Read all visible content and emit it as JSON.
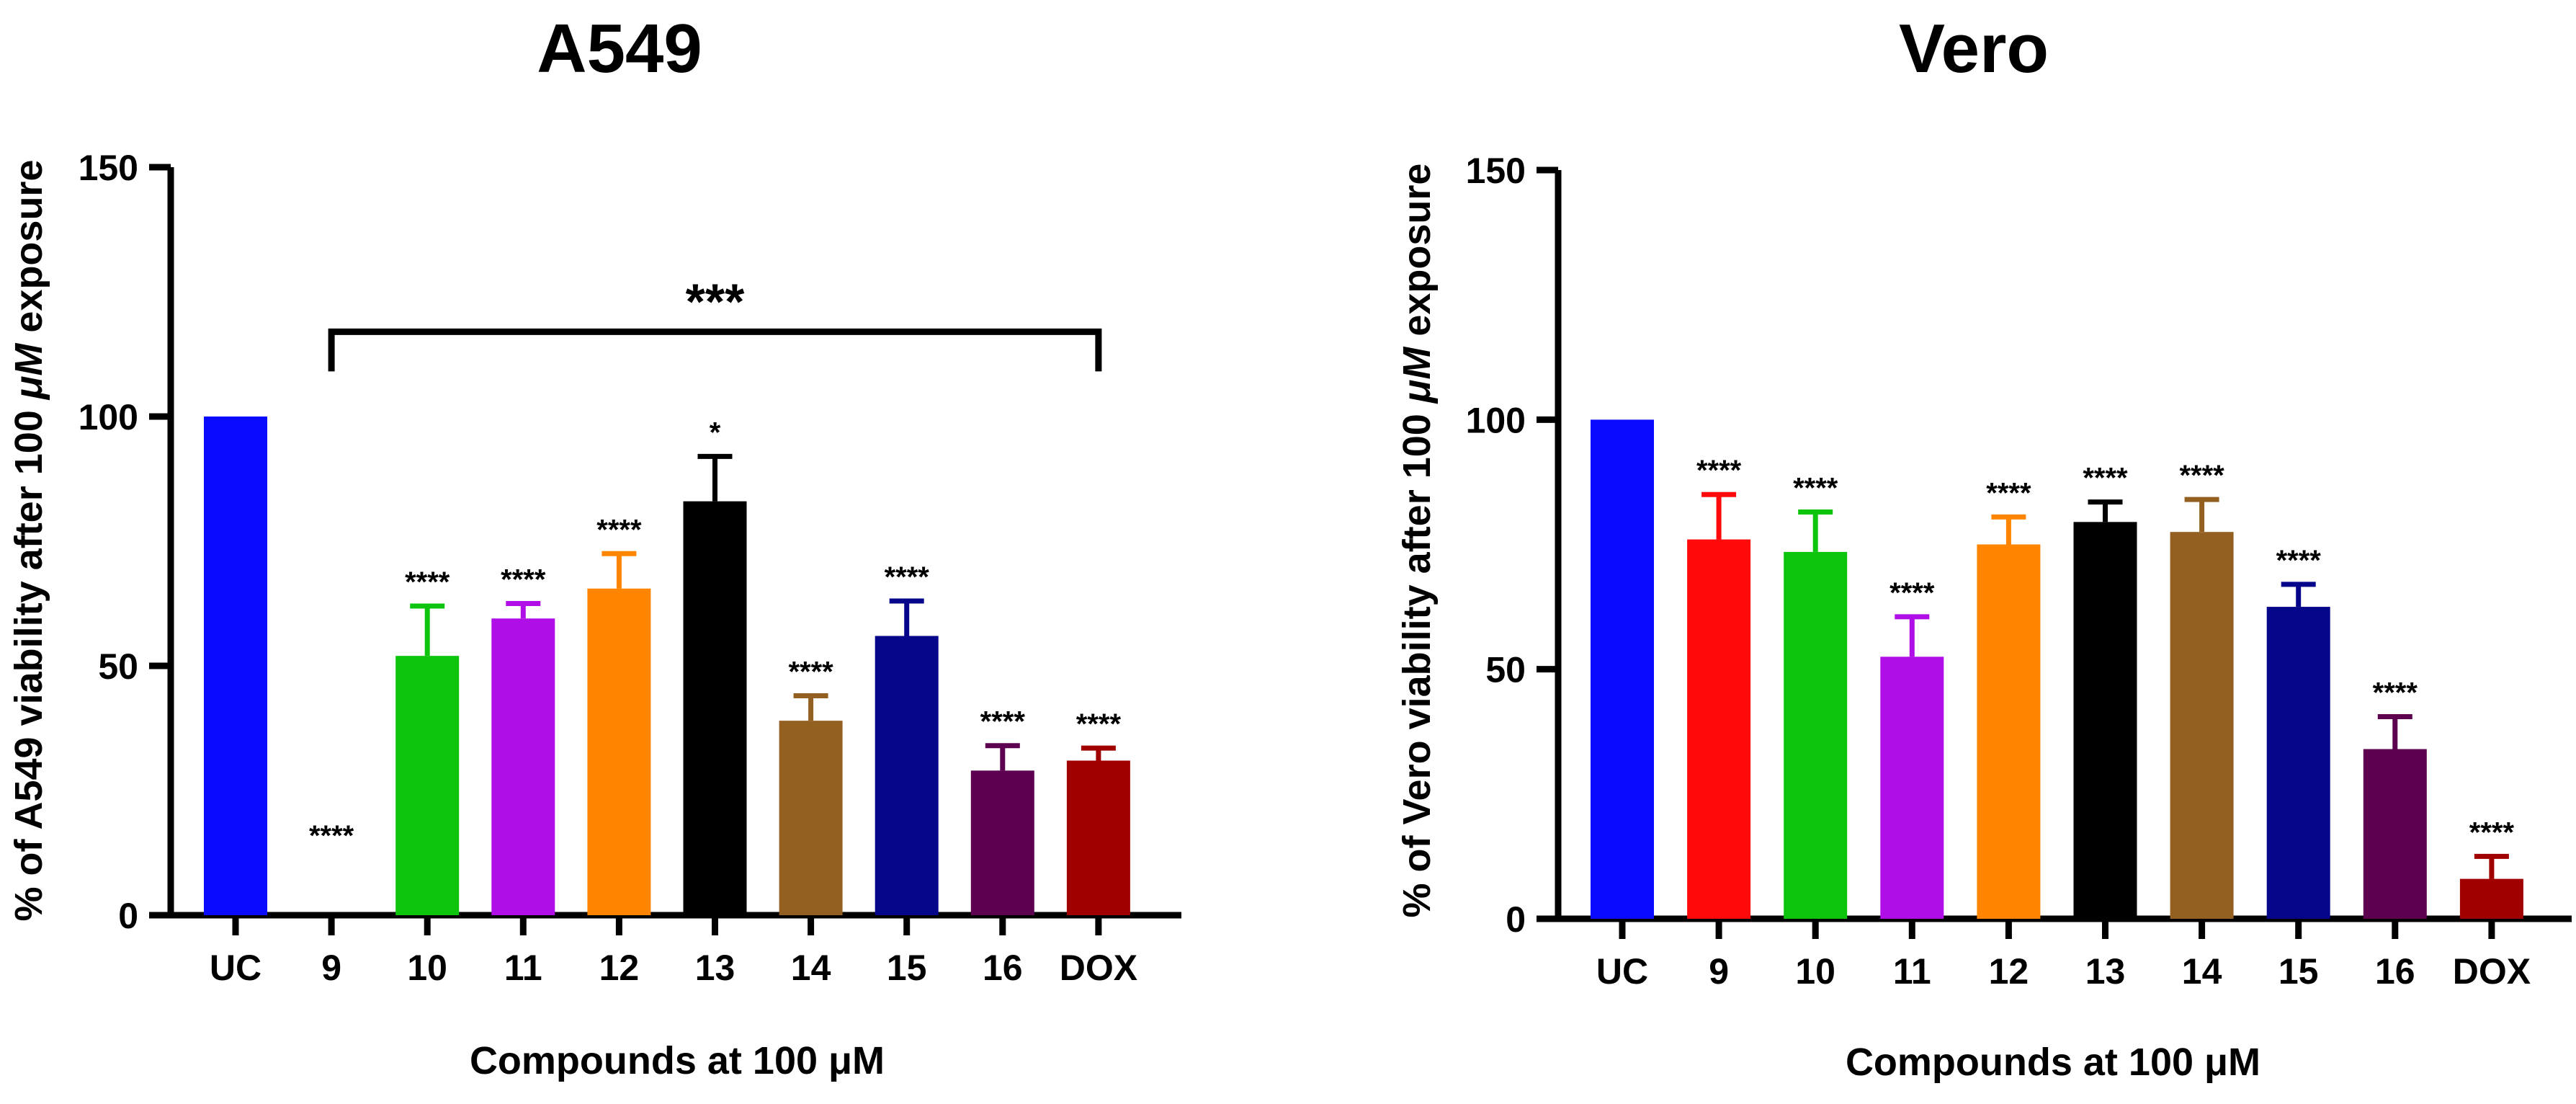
{
  "chart_data": [
    {
      "type": "bar",
      "title": "A549",
      "xlabel": "Compounds at 100 μM",
      "ylabel_prefix": "% of A549 viability after 100 ",
      "ylabel_unit": "μM",
      "ylabel_suffix": " exposure",
      "ylim": [
        0,
        150
      ],
      "yticks": [
        "0",
        "50",
        "100",
        "150"
      ],
      "categories": [
        "UC",
        "9",
        "10",
        "11",
        "12",
        "13",
        "14",
        "15",
        "16",
        "DOX"
      ],
      "values": [
        100,
        0,
        52,
        59.5,
        65.5,
        83,
        39,
        56,
        29,
        31
      ],
      "errors": [
        0,
        0,
        10,
        3,
        7,
        9,
        5,
        7,
        5,
        2.5
      ],
      "significance": [
        "",
        "****",
        "****",
        "****",
        "****",
        "*",
        "****",
        "****",
        "****",
        "****"
      ],
      "bracket": {
        "from": "9",
        "to": "DOX",
        "y": 117,
        "label": "***"
      }
    },
    {
      "type": "bar",
      "title": "Vero",
      "xlabel": "Compounds at 100 μM",
      "ylabel_prefix": "% of Vero viability after 100 ",
      "ylabel_unit": "μM",
      "ylabel_suffix": " exposure",
      "ylim": [
        0,
        150
      ],
      "yticks": [
        "0",
        "50",
        "100",
        "150"
      ],
      "categories": [
        "UC",
        "9",
        "10",
        "11",
        "12",
        "13",
        "14",
        "15",
        "16",
        "DOX"
      ],
      "values": [
        100,
        76,
        73.5,
        52.5,
        75,
        79.5,
        77.5,
        62.5,
        34,
        8
      ],
      "errors": [
        0,
        9,
        8,
        8,
        5.5,
        4,
        6.5,
        4.5,
        6.5,
        4.5
      ],
      "significance": [
        "",
        "****",
        "****",
        "****",
        "****",
        "****",
        "****",
        "****",
        "****",
        "****"
      ]
    }
  ],
  "colors": [
    "#0a0aff",
    "#ff0a0a",
    "#0dc40d",
    "#b00ee6",
    "#ff8400",
    "#000000",
    "#936022",
    "#06068a",
    "#5e0050",
    "#a00000"
  ]
}
